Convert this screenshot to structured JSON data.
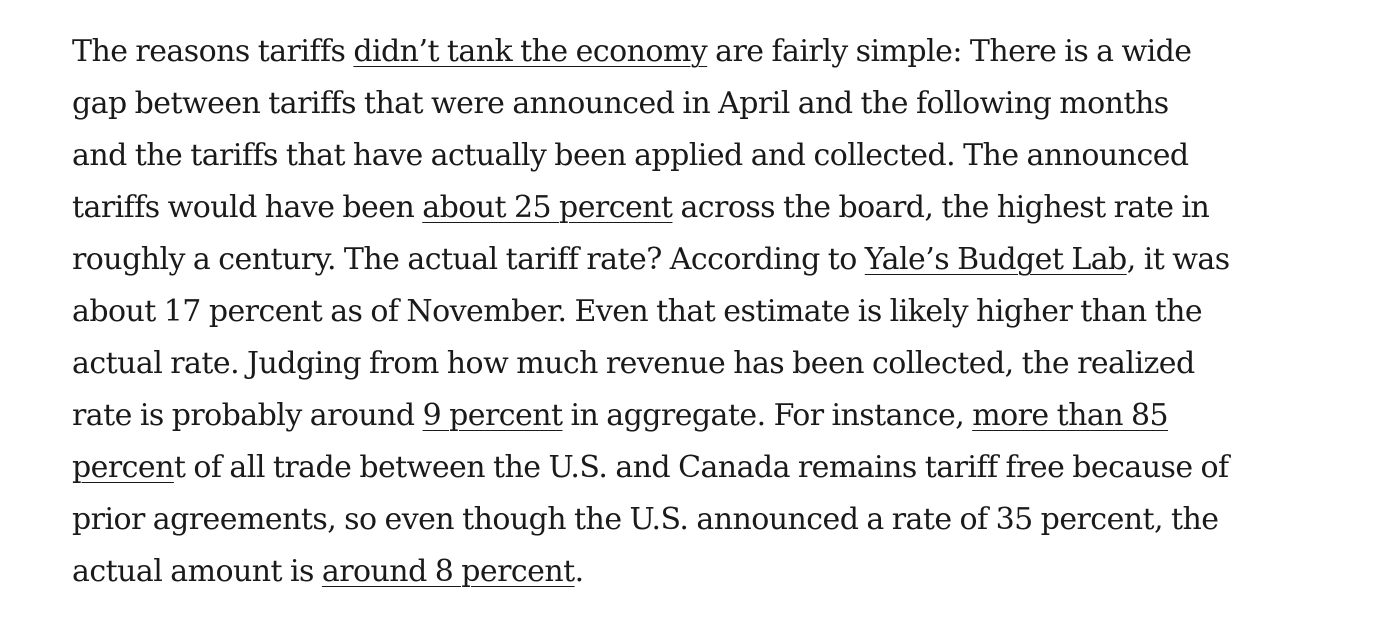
{
  "article": {
    "lines": [
      {
        "t1": "The reasons tariffs ",
        "l1": "didn’t tank the economy",
        "t2": " are fairly simple: There is a wide"
      },
      {
        "t1": "gap between tariffs that were announced in April and the following months"
      },
      {
        "t1": "and the tariffs that have actually been applied and collected. The announced"
      },
      {
        "t1": "tariffs would have been ",
        "l1": "about 25 percent",
        "t2": " across the board, the highest rate in"
      },
      {
        "t1": "roughly a century. The actual tariff rate? According to ",
        "l1": "Yale’s Budget Lab",
        "t2": ", it was"
      },
      {
        "t1": "about 17 percent as of November. Even that estimate is likely higher than the"
      },
      {
        "t1": "actual rate. Judging from how much revenue has been collected, the realized"
      },
      {
        "t1": "rate is probably around ",
        "l1": "9 percent",
        "t2": " in aggregate. For instance, ",
        "l2": "more than 85"
      },
      {
        "l1": "percen",
        "t2": "t of all trade between the U.S. and Canada remains tariff free because of"
      },
      {
        "t1": "prior agreements, so even though the U.S. announced a rate of 35 percent, the"
      },
      {
        "t1": "actual amount is ",
        "l1": "around 8 percent",
        "t2": "."
      }
    ]
  }
}
